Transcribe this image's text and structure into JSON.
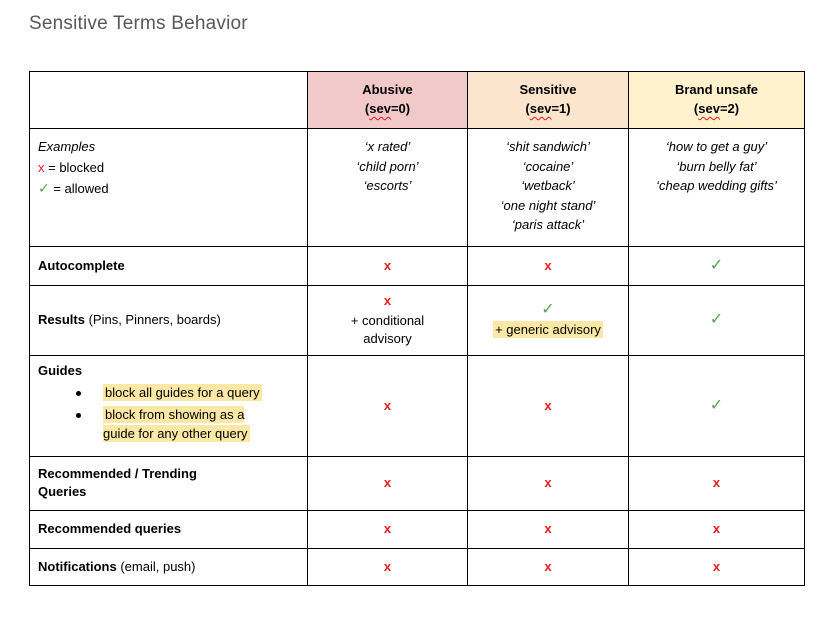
{
  "title": "Sensitive Terms Behavior",
  "symbols": {
    "blocked": "x",
    "allowed": "✓"
  },
  "colors": {
    "blocked_x": "#ee1c1c",
    "allowed_check": "#55a44d",
    "header_abusive_bg": "#f1c9c9",
    "header_sensitive_bg": "#fce5cd",
    "header_brand_unsafe_bg": "#fff2cc",
    "highlight": "#fbe8a6",
    "title_gray": "#58585a"
  },
  "header": {
    "abusive": {
      "name": "Abusive",
      "sev_open": "(",
      "sev_word": "sev",
      "sev_close": "=0)"
    },
    "sensitive": {
      "name": "Sensitive",
      "sev_open": "(",
      "sev_word": "sev",
      "sev_close": "=1)"
    },
    "brand_unsafe": {
      "name": "Brand unsafe",
      "sev_open": "(",
      "sev_word": "sev",
      "sev_close": "=2)"
    }
  },
  "legend": {
    "title": "Examples",
    "blocked_eq": " = blocked",
    "allowed_eq": " = allowed"
  },
  "examples": {
    "abusive": [
      "‘x rated’",
      "‘child porn’",
      "‘escorts’"
    ],
    "sensitive": [
      "‘shit sandwich’",
      "‘cocaine’",
      "‘wetback’",
      "‘one night stand’",
      "‘paris attack’"
    ],
    "brand_unsafe": [
      "‘how to get a guy’",
      "‘burn belly fat’",
      "‘cheap wedding gifts’"
    ]
  },
  "rows": {
    "autocomplete": {
      "label": "Autocomplete"
    },
    "results": {
      "label_bold": "Results",
      "label_rest": " (Pins, Pinners, boards)",
      "abusive_note": "+ conditional\nadvisory",
      "sensitive_note": "+ generic advisory"
    },
    "guides": {
      "label_bold": "Guides",
      "bullets": [
        "block all guides for a query",
        "block from showing as a\nguide for any other query"
      ]
    },
    "recommended_trending": {
      "label": "Recommended / Trending\nQueries"
    },
    "recommended": {
      "label": "Recommended queries"
    },
    "notifications": {
      "label_bold": "Notifications",
      "label_rest": " (email, push)"
    }
  }
}
